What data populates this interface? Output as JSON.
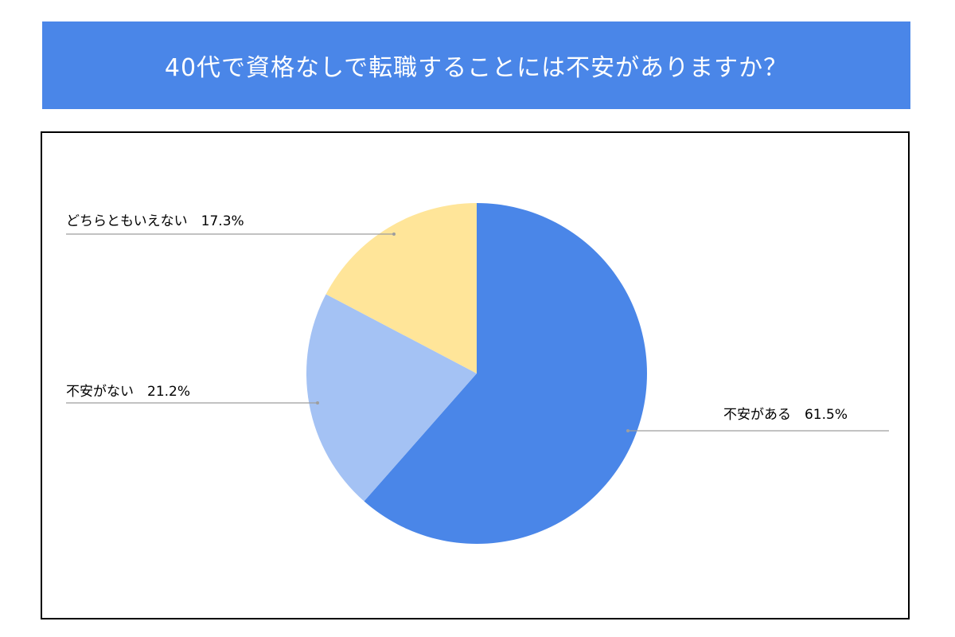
{
  "title": "40代で資格なしで転職することには不安がありますか？",
  "colors": {
    "banner": "#4a86e8",
    "leader_line": "#9e9e9e"
  },
  "chart_data": {
    "type": "pie",
    "title": "40代で資格なしで転職することには不安がありますか？",
    "start_angle_deg": 0,
    "direction": "clockwise",
    "slices": [
      {
        "label": "不安がある",
        "value": 61.5,
        "display": "不安がある　61.5%",
        "color": "#4a86e8"
      },
      {
        "label": "不安がない",
        "value": 21.2,
        "display": "不安がない　21.2%",
        "color": "#a4c2f4"
      },
      {
        "label": "どちらともいえない",
        "value": 17.3,
        "display": "どちらともいえない　17.3%",
        "color": "#ffe599"
      }
    ]
  }
}
